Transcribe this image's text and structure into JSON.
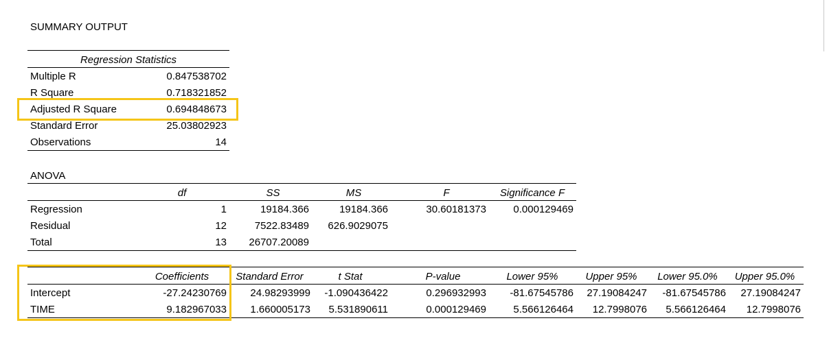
{
  "title": "SUMMARY OUTPUT",
  "regression_statistics": {
    "header": "Regression Statistics",
    "rows": [
      {
        "label": "Multiple R",
        "value": "0.847538702"
      },
      {
        "label": "R Square",
        "value": "0.718321852"
      },
      {
        "label": "Adjusted R Square",
        "value": "0.694848673"
      },
      {
        "label": "Standard Error",
        "value": "25.03802923"
      },
      {
        "label": "Observations",
        "value": "14"
      }
    ]
  },
  "anova": {
    "title": "ANOVA",
    "headers": [
      "",
      "df",
      "SS",
      "MS",
      "F",
      "Significance F"
    ],
    "rows": [
      [
        "Regression",
        "1",
        "19184.366",
        "19184.366",
        "30.60181373",
        "0.000129469"
      ],
      [
        "Residual",
        "12",
        "7522.83489",
        "626.9029075",
        "",
        ""
      ],
      [
        "Total",
        "13",
        "26707.20089",
        "",
        "",
        ""
      ]
    ]
  },
  "coefficients": {
    "headers": [
      "",
      "Coefficients",
      "Standard Error",
      "t Stat",
      "P-value",
      "Lower 95%",
      "Upper 95%",
      "Lower 95.0%",
      "Upper 95.0%"
    ],
    "rows": [
      [
        "Intercept",
        "-27.24230769",
        "24.98293999",
        "-1.090436422",
        "0.296932993",
        "-81.67545786",
        "27.19084247",
        "-81.67545786",
        "27.19084247"
      ],
      [
        "TIME",
        "9.182967033",
        "1.660005173",
        "5.531890611",
        "0.000129469",
        "5.566126464",
        "12.7998076",
        "5.566126464",
        "12.7998076"
      ]
    ]
  },
  "highlight_color": "#f5c518"
}
